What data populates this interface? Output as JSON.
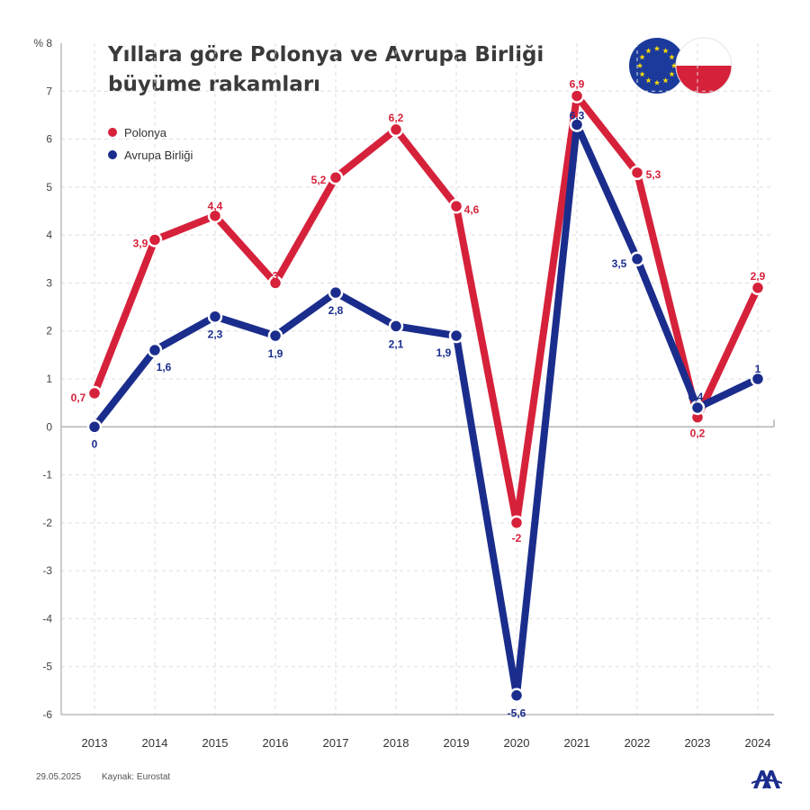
{
  "chart_data": {
    "type": "line",
    "title_lines": [
      "Yıllara göre Polonya ve Avrupa Birliği",
      "büyüme rakamları"
    ],
    "unit_label": "% 8",
    "x": [
      "2013",
      "2014",
      "2015",
      "2016",
      "2017",
      "2018",
      "2019",
      "2020",
      "2021",
      "2022",
      "2023",
      "2024"
    ],
    "ylim": [
      -6,
      8
    ],
    "yticks": [
      {
        "v": 7,
        "t": "7"
      },
      {
        "v": 6,
        "t": "6"
      },
      {
        "v": 5,
        "t": "5"
      },
      {
        "v": 4,
        "t": "4"
      },
      {
        "v": 3,
        "t": "3"
      },
      {
        "v": 2,
        "t": "2"
      },
      {
        "v": 1,
        "t": "1"
      },
      {
        "v": 0,
        "t": "0"
      },
      {
        "v": -1,
        "t": "-1"
      },
      {
        "v": -2,
        "t": "-2"
      },
      {
        "v": -3,
        "t": "-3"
      },
      {
        "v": -4,
        "t": "-4"
      },
      {
        "v": -5,
        "t": "-5"
      },
      {
        "v": -6,
        "t": "-6"
      }
    ],
    "grid": true,
    "legend_position": "top-left",
    "series": [
      {
        "name": "Polonya",
        "color": "#d6213b",
        "values": [
          0.7,
          3.9,
          4.4,
          3.0,
          5.2,
          6.2,
          4.6,
          -2.0,
          6.9,
          5.3,
          0.2,
          2.9
        ],
        "labels": [
          "0,7",
          "3,9",
          "4,4",
          "3",
          "5,2",
          "6,2",
          "4,6",
          "-2",
          "6,9",
          "5,3",
          "0,2",
          "2,9"
        ]
      },
      {
        "name": "Avrupa Birliği",
        "color": "#1b2d8c",
        "values": [
          0.0,
          1.6,
          2.3,
          1.9,
          2.8,
          2.1,
          1.9,
          -5.6,
          6.3,
          3.5,
          0.4,
          1.0
        ],
        "labels": [
          "0",
          "1,6",
          "2,3",
          "1,9",
          "2,8",
          "2,1",
          "1,9",
          "-5,6",
          "6,3",
          "3,5",
          "0,4",
          "1"
        ]
      }
    ]
  },
  "footer": {
    "date": "29.05.2025",
    "source": "Kaynak: Eurostat"
  },
  "colors": {
    "eu_flag_blue": "#1b3a9c",
    "eu_flag_stars": "#f5d90a",
    "pl_flag_white": "#ffffff",
    "pl_flag_red": "#d6213b",
    "logo": "#1b2d8c"
  }
}
